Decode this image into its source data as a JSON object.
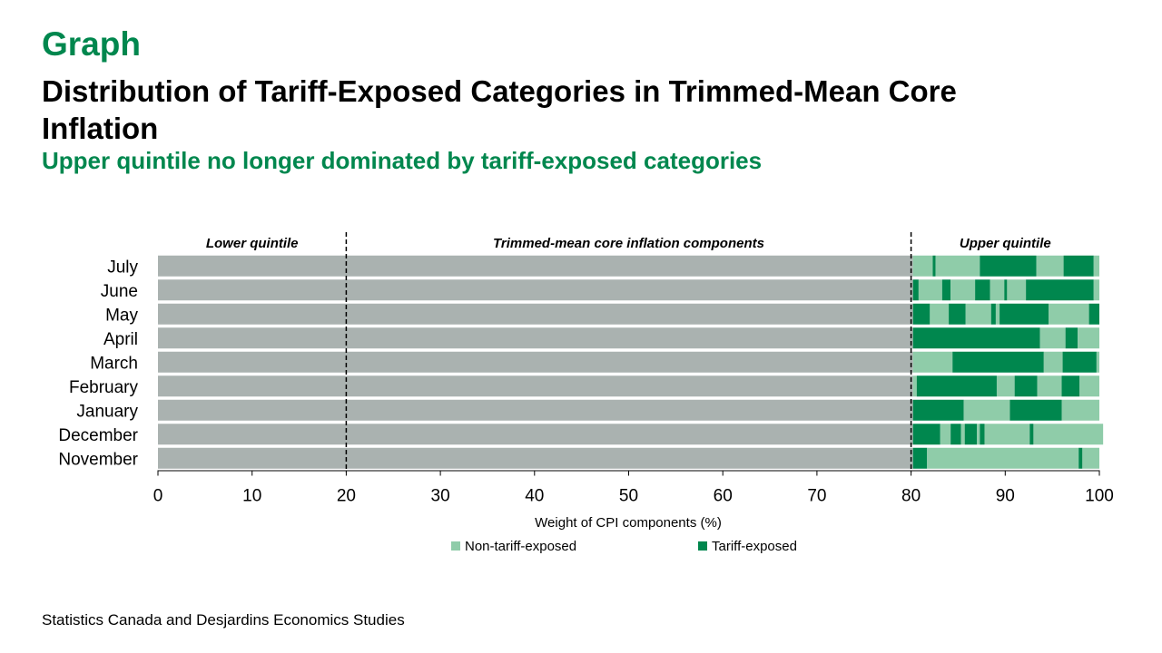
{
  "header": {
    "kicker": "Graph",
    "title": "Distribution of Tariff-Exposed Categories in Trimmed-Mean Core Inflation",
    "subtitle": "Upper quintile no longer dominated by tariff-exposed categories"
  },
  "footer": {
    "source": "Statistics Canada and Desjardins Economics Studies"
  },
  "colors": {
    "core": "#aab2b0",
    "non_tariff": "#8fcca9",
    "tariff": "#00874e",
    "accent": "#00874e"
  },
  "chart_data": {
    "type": "bar",
    "orientation": "horizontal",
    "stacked": true,
    "title": "Distribution of Tariff-Exposed Categories in Trimmed-Mean Core Inflation",
    "subtitle": "Upper quintile no longer dominated by tariff-exposed categories",
    "xlabel": "Weight of CPI components (%)",
    "xlim": [
      0,
      100
    ],
    "xticks": [
      0,
      10,
      20,
      30,
      40,
      50,
      60,
      70,
      80,
      90,
      100
    ],
    "categories": [
      "July",
      "June",
      "May",
      "April",
      "March",
      "February",
      "January",
      "December",
      "November"
    ],
    "zones": [
      {
        "label": "Lower quintile",
        "from": 0,
        "to": 20
      },
      {
        "label": "Trimmed-mean core inflation components",
        "from": 20,
        "to": 80
      },
      {
        "label": "Upper quintile",
        "from": 80,
        "to": 100
      }
    ],
    "dividers": [
      20,
      80
    ],
    "legend": [
      {
        "name": "Non-tariff-exposed",
        "color": "#8fcca9"
      },
      {
        "name": "Tariff-exposed",
        "color": "#00874e"
      }
    ],
    "legend_position": "bottom",
    "segment_types": {
      "c": "core",
      "n": "non_tariff",
      "t": "tariff"
    },
    "rows": [
      {
        "category": "July",
        "segments": [
          [
            "c",
            80.2
          ],
          [
            "n",
            2.1
          ],
          [
            "t",
            0.3
          ],
          [
            "n",
            4.7
          ],
          [
            "t",
            6.0
          ],
          [
            "n",
            2.9
          ],
          [
            "t",
            3.2
          ],
          [
            "n",
            0.6
          ]
        ]
      },
      {
        "category": "June",
        "segments": [
          [
            "c",
            80.2
          ],
          [
            "t",
            0.6
          ],
          [
            "n",
            2.5
          ],
          [
            "t",
            0.9
          ],
          [
            "n",
            2.6
          ],
          [
            "t",
            1.6
          ],
          [
            "n",
            1.5
          ],
          [
            "t",
            0.3
          ],
          [
            "n",
            2.0
          ],
          [
            "t",
            7.2
          ],
          [
            "n",
            0.6
          ]
        ]
      },
      {
        "category": "May",
        "segments": [
          [
            "c",
            80.2
          ],
          [
            "t",
            1.8
          ],
          [
            "n",
            2.0
          ],
          [
            "t",
            1.8
          ],
          [
            "n",
            2.7
          ],
          [
            "t",
            0.5
          ],
          [
            "n",
            0.4
          ],
          [
            "t",
            5.2
          ],
          [
            "n",
            4.3
          ],
          [
            "t",
            1.1
          ]
        ]
      },
      {
        "category": "April",
        "segments": [
          [
            "c",
            80.2
          ],
          [
            "t",
            13.5
          ],
          [
            "n",
            2.7
          ],
          [
            "t",
            1.3
          ],
          [
            "n",
            2.3
          ]
        ]
      },
      {
        "category": "March",
        "segments": [
          [
            "c",
            80.2
          ],
          [
            "n",
            4.2
          ],
          [
            "t",
            9.7
          ],
          [
            "n",
            2.0
          ],
          [
            "t",
            3.6
          ],
          [
            "n",
            0.3
          ]
        ]
      },
      {
        "category": "February",
        "segments": [
          [
            "c",
            80.2
          ],
          [
            "n",
            0.4
          ],
          [
            "t",
            8.5
          ],
          [
            "n",
            1.9
          ],
          [
            "t",
            2.4
          ],
          [
            "n",
            2.6
          ],
          [
            "t",
            1.9
          ],
          [
            "n",
            2.1
          ]
        ]
      },
      {
        "category": "January",
        "segments": [
          [
            "c",
            80.2
          ],
          [
            "t",
            5.4
          ],
          [
            "n",
            4.9
          ],
          [
            "t",
            5.5
          ],
          [
            "n",
            4.0
          ]
        ]
      },
      {
        "category": "December",
        "segments": [
          [
            "c",
            80.2
          ],
          [
            "t",
            2.9
          ],
          [
            "n",
            1.1
          ],
          [
            "t",
            1.1
          ],
          [
            "n",
            0.4
          ],
          [
            "t",
            1.3
          ],
          [
            "n",
            0.3
          ],
          [
            "t",
            0.5
          ],
          [
            "n",
            4.8
          ],
          [
            "t",
            0.4
          ],
          [
            "n",
            7.4
          ]
        ]
      },
      {
        "category": "November",
        "segments": [
          [
            "c",
            80.2
          ],
          [
            "t",
            1.5
          ],
          [
            "n",
            16.1
          ],
          [
            "t",
            0.4
          ],
          [
            "n",
            1.8
          ]
        ]
      }
    ]
  }
}
